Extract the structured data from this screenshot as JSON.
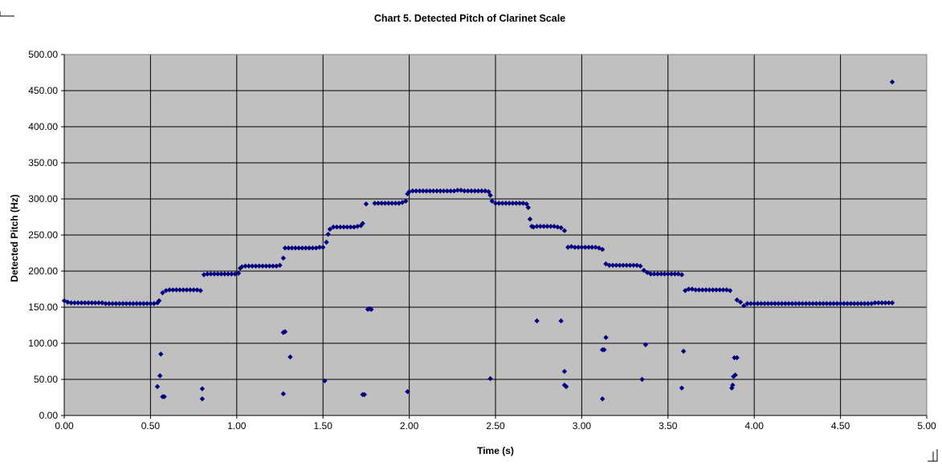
{
  "chart_data": {
    "type": "scatter",
    "title": "Chart 5. Detected Pitch of Clarinet Scale",
    "xlabel": "Time (s)",
    "ylabel": "Detected Pitch (Hz)",
    "xlim": [
      0,
      5
    ],
    "ylim": [
      0,
      500
    ],
    "x_ticks": [
      "0.00",
      "0.50",
      "1.00",
      "1.50",
      "2.00",
      "2.50",
      "3.00",
      "3.50",
      "4.00",
      "4.50",
      "5.00"
    ],
    "y_ticks": [
      "0.00",
      "50.00",
      "100.00",
      "150.00",
      "200.00",
      "250.00",
      "300.00",
      "350.00",
      "400.00",
      "450.00",
      "500.00"
    ],
    "grid": true,
    "legend": "none",
    "plot_background": "#c0c0c0",
    "marker_color": "#000080",
    "series": [
      {
        "marker": "diamond",
        "points": [
          [
            0.0,
            159
          ],
          [
            0.02,
            157
          ],
          [
            0.04,
            156
          ],
          [
            0.06,
            156
          ],
          [
            0.08,
            156
          ],
          [
            0.1,
            156
          ],
          [
            0.12,
            156
          ],
          [
            0.14,
            156
          ],
          [
            0.16,
            156
          ],
          [
            0.18,
            156
          ],
          [
            0.2,
            156
          ],
          [
            0.22,
            156
          ],
          [
            0.24,
            155
          ],
          [
            0.26,
            155
          ],
          [
            0.28,
            155
          ],
          [
            0.3,
            155
          ],
          [
            0.32,
            155
          ],
          [
            0.34,
            155
          ],
          [
            0.36,
            155
          ],
          [
            0.38,
            155
          ],
          [
            0.4,
            155
          ],
          [
            0.42,
            155
          ],
          [
            0.44,
            155
          ],
          [
            0.46,
            155
          ],
          [
            0.48,
            155
          ],
          [
            0.5,
            155
          ],
          [
            0.52,
            155
          ],
          [
            0.54,
            156
          ],
          [
            0.55,
            159
          ],
          [
            0.57,
            170
          ],
          [
            0.59,
            173
          ],
          [
            0.61,
            174
          ],
          [
            0.63,
            174
          ],
          [
            0.65,
            174
          ],
          [
            0.67,
            174
          ],
          [
            0.69,
            174
          ],
          [
            0.71,
            174
          ],
          [
            0.73,
            174
          ],
          [
            0.75,
            174
          ],
          [
            0.77,
            174
          ],
          [
            0.79,
            173
          ],
          [
            0.81,
            195
          ],
          [
            0.83,
            196
          ],
          [
            0.85,
            196
          ],
          [
            0.87,
            196
          ],
          [
            0.89,
            196
          ],
          [
            0.91,
            196
          ],
          [
            0.93,
            196
          ],
          [
            0.95,
            196
          ],
          [
            0.97,
            196
          ],
          [
            0.99,
            196
          ],
          [
            1.01,
            197
          ],
          [
            1.02,
            204
          ],
          [
            1.03,
            206
          ],
          [
            1.05,
            207
          ],
          [
            1.07,
            207
          ],
          [
            1.09,
            207
          ],
          [
            1.11,
            207
          ],
          [
            1.13,
            207
          ],
          [
            1.15,
            207
          ],
          [
            1.17,
            207
          ],
          [
            1.19,
            207
          ],
          [
            1.21,
            207
          ],
          [
            1.23,
            207
          ],
          [
            1.25,
            208
          ],
          [
            1.27,
            218
          ],
          [
            1.28,
            232
          ],
          [
            1.3,
            232
          ],
          [
            1.32,
            232
          ],
          [
            1.34,
            232
          ],
          [
            1.36,
            232
          ],
          [
            1.38,
            232
          ],
          [
            1.4,
            232
          ],
          [
            1.42,
            232
          ],
          [
            1.44,
            232
          ],
          [
            1.46,
            232
          ],
          [
            1.48,
            233
          ],
          [
            1.5,
            233
          ],
          [
            1.52,
            240
          ],
          [
            1.53,
            251
          ],
          [
            1.54,
            258
          ],
          [
            1.56,
            261
          ],
          [
            1.58,
            261
          ],
          [
            1.6,
            261
          ],
          [
            1.62,
            261
          ],
          [
            1.64,
            261
          ],
          [
            1.66,
            261
          ],
          [
            1.68,
            261
          ],
          [
            1.7,
            262
          ],
          [
            1.72,
            263
          ],
          [
            1.73,
            266
          ],
          [
            1.75,
            293
          ],
          [
            1.8,
            294
          ],
          [
            1.82,
            294
          ],
          [
            1.84,
            294
          ],
          [
            1.86,
            294
          ],
          [
            1.88,
            294
          ],
          [
            1.9,
            294
          ],
          [
            1.92,
            294
          ],
          [
            1.94,
            294
          ],
          [
            1.96,
            295
          ],
          [
            1.98,
            297
          ],
          [
            1.99,
            307
          ],
          [
            2.0,
            310
          ],
          [
            2.02,
            311
          ],
          [
            2.04,
            311
          ],
          [
            2.06,
            311
          ],
          [
            2.08,
            311
          ],
          [
            2.1,
            311
          ],
          [
            2.12,
            311
          ],
          [
            2.14,
            311
          ],
          [
            2.16,
            311
          ],
          [
            2.18,
            311
          ],
          [
            2.2,
            311
          ],
          [
            2.22,
            311
          ],
          [
            2.24,
            311
          ],
          [
            2.26,
            311
          ],
          [
            2.28,
            312
          ],
          [
            2.3,
            312
          ],
          [
            2.32,
            311
          ],
          [
            2.34,
            311
          ],
          [
            2.36,
            311
          ],
          [
            2.38,
            311
          ],
          [
            2.4,
            311
          ],
          [
            2.42,
            311
          ],
          [
            2.44,
            311
          ],
          [
            2.46,
            310
          ],
          [
            2.47,
            305
          ],
          [
            2.48,
            297
          ],
          [
            2.5,
            294
          ],
          [
            2.52,
            294
          ],
          [
            2.54,
            294
          ],
          [
            2.56,
            294
          ],
          [
            2.58,
            294
          ],
          [
            2.6,
            294
          ],
          [
            2.62,
            294
          ],
          [
            2.64,
            294
          ],
          [
            2.66,
            294
          ],
          [
            2.68,
            293
          ],
          [
            2.69,
            288
          ],
          [
            2.7,
            272
          ],
          [
            2.71,
            262
          ],
          [
            2.72,
            261
          ],
          [
            2.74,
            262
          ],
          [
            2.76,
            262
          ],
          [
            2.78,
            262
          ],
          [
            2.8,
            262
          ],
          [
            2.82,
            262
          ],
          [
            2.84,
            262
          ],
          [
            2.86,
            261
          ],
          [
            2.88,
            260
          ],
          [
            2.9,
            256
          ],
          [
            2.92,
            233
          ],
          [
            2.94,
            234
          ],
          [
            2.96,
            233
          ],
          [
            2.98,
            233
          ],
          [
            3.0,
            233
          ],
          [
            3.02,
            233
          ],
          [
            3.04,
            233
          ],
          [
            3.06,
            233
          ],
          [
            3.08,
            233
          ],
          [
            3.1,
            232
          ],
          [
            3.12,
            230
          ],
          [
            3.14,
            210
          ],
          [
            3.16,
            208
          ],
          [
            3.18,
            208
          ],
          [
            3.2,
            208
          ],
          [
            3.22,
            208
          ],
          [
            3.24,
            208
          ],
          [
            3.26,
            208
          ],
          [
            3.28,
            208
          ],
          [
            3.3,
            208
          ],
          [
            3.32,
            208
          ],
          [
            3.34,
            207
          ],
          [
            3.36,
            201
          ],
          [
            3.38,
            198
          ],
          [
            3.4,
            196
          ],
          [
            3.42,
            196
          ],
          [
            3.44,
            196
          ],
          [
            3.46,
            196
          ],
          [
            3.48,
            196
          ],
          [
            3.5,
            196
          ],
          [
            3.52,
            196
          ],
          [
            3.54,
            196
          ],
          [
            3.56,
            196
          ],
          [
            3.58,
            195
          ],
          [
            3.6,
            173
          ],
          [
            3.62,
            175
          ],
          [
            3.64,
            175
          ],
          [
            3.66,
            174
          ],
          [
            3.68,
            174
          ],
          [
            3.7,
            174
          ],
          [
            3.72,
            174
          ],
          [
            3.74,
            174
          ],
          [
            3.76,
            174
          ],
          [
            3.78,
            174
          ],
          [
            3.8,
            174
          ],
          [
            3.82,
            174
          ],
          [
            3.84,
            174
          ],
          [
            3.86,
            173
          ],
          [
            3.9,
            160
          ],
          [
            3.92,
            157
          ],
          [
            3.94,
            152
          ],
          [
            3.96,
            155
          ],
          [
            3.98,
            155
          ],
          [
            4.0,
            155
          ],
          [
            4.02,
            155
          ],
          [
            4.04,
            155
          ],
          [
            4.06,
            155
          ],
          [
            4.08,
            155
          ],
          [
            4.1,
            155
          ],
          [
            4.12,
            155
          ],
          [
            4.14,
            155
          ],
          [
            4.16,
            155
          ],
          [
            4.18,
            155
          ],
          [
            4.2,
            155
          ],
          [
            4.22,
            155
          ],
          [
            4.24,
            155
          ],
          [
            4.26,
            155
          ],
          [
            4.28,
            155
          ],
          [
            4.3,
            155
          ],
          [
            4.32,
            155
          ],
          [
            4.34,
            155
          ],
          [
            4.36,
            155
          ],
          [
            4.38,
            155
          ],
          [
            4.4,
            155
          ],
          [
            4.42,
            155
          ],
          [
            4.44,
            155
          ],
          [
            4.46,
            155
          ],
          [
            4.48,
            155
          ],
          [
            4.5,
            155
          ],
          [
            4.52,
            155
          ],
          [
            4.54,
            155
          ],
          [
            4.56,
            155
          ],
          [
            4.58,
            155
          ],
          [
            4.6,
            155
          ],
          [
            4.62,
            155
          ],
          [
            4.64,
            155
          ],
          [
            4.66,
            155
          ],
          [
            4.68,
            155
          ],
          [
            4.7,
            156
          ],
          [
            4.72,
            156
          ],
          [
            4.74,
            156
          ],
          [
            4.76,
            156
          ],
          [
            4.78,
            156
          ],
          [
            4.8,
            156
          ],
          [
            4.8,
            462
          ],
          [
            0.54,
            40
          ],
          [
            0.555,
            55
          ],
          [
            0.56,
            85
          ],
          [
            0.57,
            26
          ],
          [
            0.58,
            26
          ],
          [
            0.8,
            37
          ],
          [
            0.8,
            23
          ],
          [
            1.27,
            115
          ],
          [
            1.28,
            116
          ],
          [
            1.27,
            30
          ],
          [
            1.31,
            81
          ],
          [
            1.51,
            48
          ],
          [
            1.73,
            29
          ],
          [
            1.74,
            29
          ],
          [
            1.76,
            147
          ],
          [
            1.77,
            148
          ],
          [
            1.78,
            147
          ],
          [
            1.99,
            33
          ],
          [
            2.47,
            51
          ],
          [
            2.74,
            131
          ],
          [
            2.88,
            131
          ],
          [
            2.9,
            61
          ],
          [
            2.9,
            42
          ],
          [
            2.91,
            40
          ],
          [
            3.12,
            91
          ],
          [
            3.13,
            91
          ],
          [
            3.14,
            108
          ],
          [
            3.12,
            23
          ],
          [
            3.35,
            50
          ],
          [
            3.37,
            98
          ],
          [
            3.58,
            38
          ],
          [
            3.59,
            89
          ],
          [
            3.87,
            38
          ],
          [
            3.875,
            42
          ],
          [
            3.88,
            54
          ],
          [
            3.885,
            80
          ],
          [
            3.89,
            56
          ],
          [
            3.9,
            80
          ]
        ]
      }
    ]
  }
}
